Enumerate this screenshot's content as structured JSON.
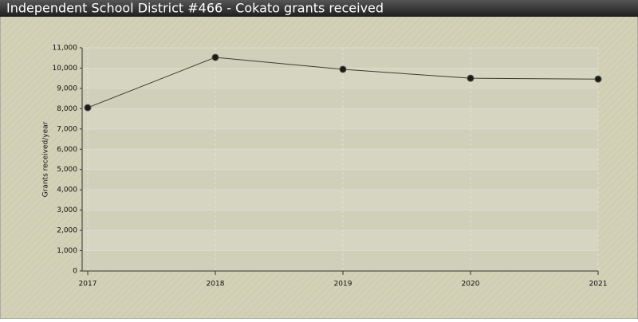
{
  "chart_data": {
    "type": "line",
    "title": "Independent School District #466 - Cokato grants received",
    "y_label": "Grants received/year",
    "categories": [
      "2017",
      "2018",
      "2019",
      "2020",
      "2021"
    ],
    "series": [
      {
        "name": "Grants received/year",
        "color": "#3a3d2c",
        "values": [
          8050,
          10530,
          9940,
          9500,
          9460
        ]
      }
    ],
    "ylim": [
      0,
      11000
    ],
    "yticks": [
      0,
      {
        "value": 1000,
        "label": "1,000"
      },
      {
        "value": 2000,
        "label": "2,000"
      },
      {
        "value": 3000,
        "label": "3,000"
      },
      {
        "value": 4000,
        "label": "4,000"
      },
      {
        "value": 5000,
        "label": "5,000"
      },
      {
        "value": 6000,
        "label": "6,000"
      },
      {
        "value": 7000,
        "label": "7,000"
      },
      {
        "value": 8000,
        "label": "8,000"
      },
      {
        "value": 9000,
        "label": "9,000"
      },
      {
        "value": 10000,
        "label": "10,000"
      },
      {
        "value": 11000,
        "label": "11,000"
      }
    ],
    "grid": true
  }
}
